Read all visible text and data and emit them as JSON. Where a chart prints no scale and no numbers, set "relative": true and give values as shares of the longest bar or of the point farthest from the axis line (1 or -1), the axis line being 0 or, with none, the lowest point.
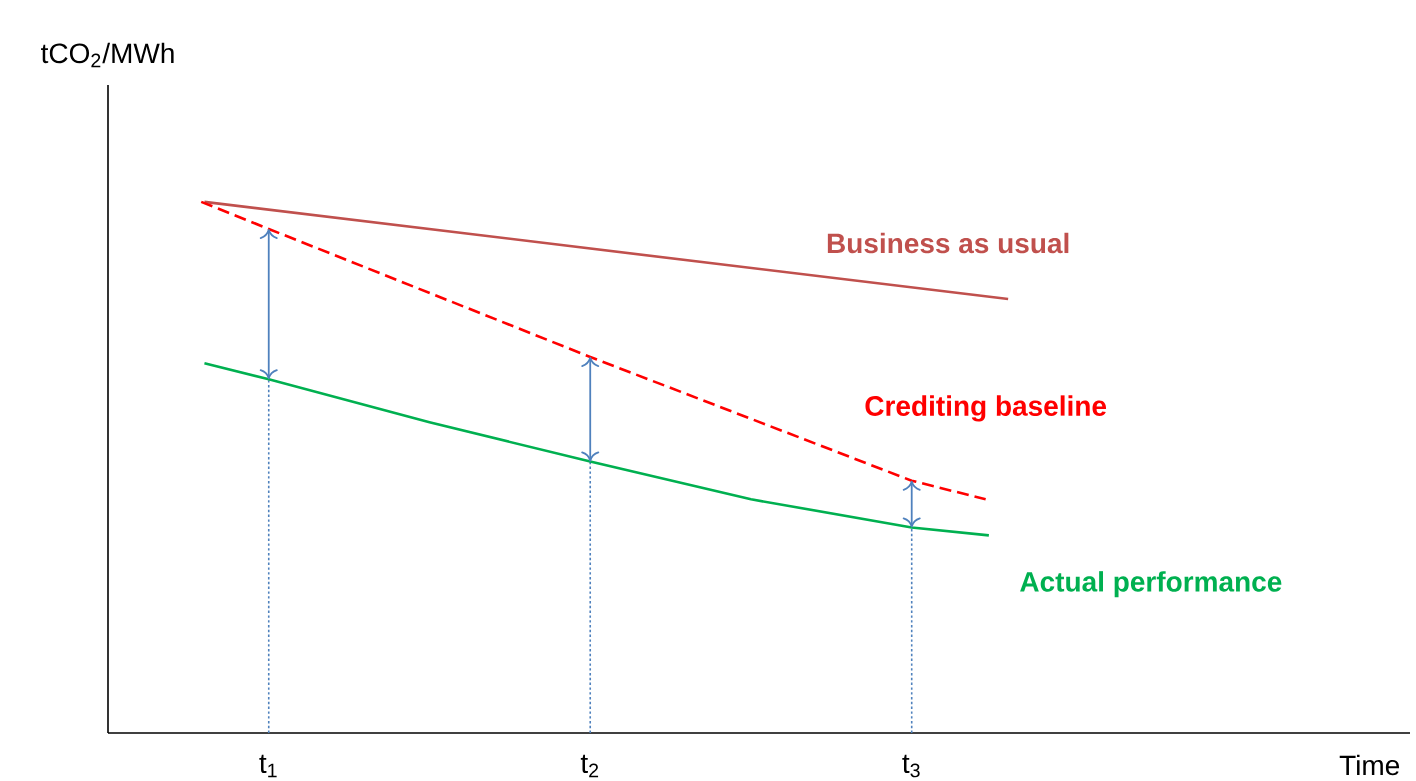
{
  "chart_data": {
    "type": "line",
    "relative": true,
    "ylabel": "tCO$_{2}$/MWh",
    "xlabel": "Time",
    "xlim": [
      0.5,
      4.55
    ],
    "xticks": [
      {
        "value": 1,
        "label": "t$_{1}$"
      },
      {
        "value": 2,
        "label": "t$_{2}$"
      },
      {
        "value": 3,
        "label": "t$_{3}$"
      }
    ],
    "series": [
      {
        "name": "Business as usual",
        "color": "#c0504d",
        "line_style": "solid",
        "x": [
          0.8,
          3.3
        ],
        "values": [
          1.0,
          0.817
        ]
      },
      {
        "name": "Crediting baseline",
        "color": "#ff0000",
        "line_style": "dashed",
        "x": [
          0.79,
          1,
          2,
          3,
          3.23
        ],
        "values": [
          1.0,
          0.949,
          0.708,
          0.475,
          0.44
        ]
      },
      {
        "name": "Actual performance",
        "color": "#00b050",
        "line_style": "solid",
        "x": [
          0.8,
          1,
          1.5,
          2,
          2.5,
          3,
          3.24
        ],
        "values": [
          0.696,
          0.666,
          0.585,
          0.511,
          0.44,
          0.387,
          0.372
        ]
      }
    ],
    "ref_lines": [
      {
        "axis": "x",
        "value": 1,
        "color": "#4f81bd",
        "line_style": "dotted"
      },
      {
        "axis": "x",
        "value": 2,
        "color": "#4f81bd",
        "line_style": "dotted"
      },
      {
        "axis": "x",
        "value": 3,
        "color": "#4f81bd",
        "line_style": "dotted"
      }
    ]
  }
}
